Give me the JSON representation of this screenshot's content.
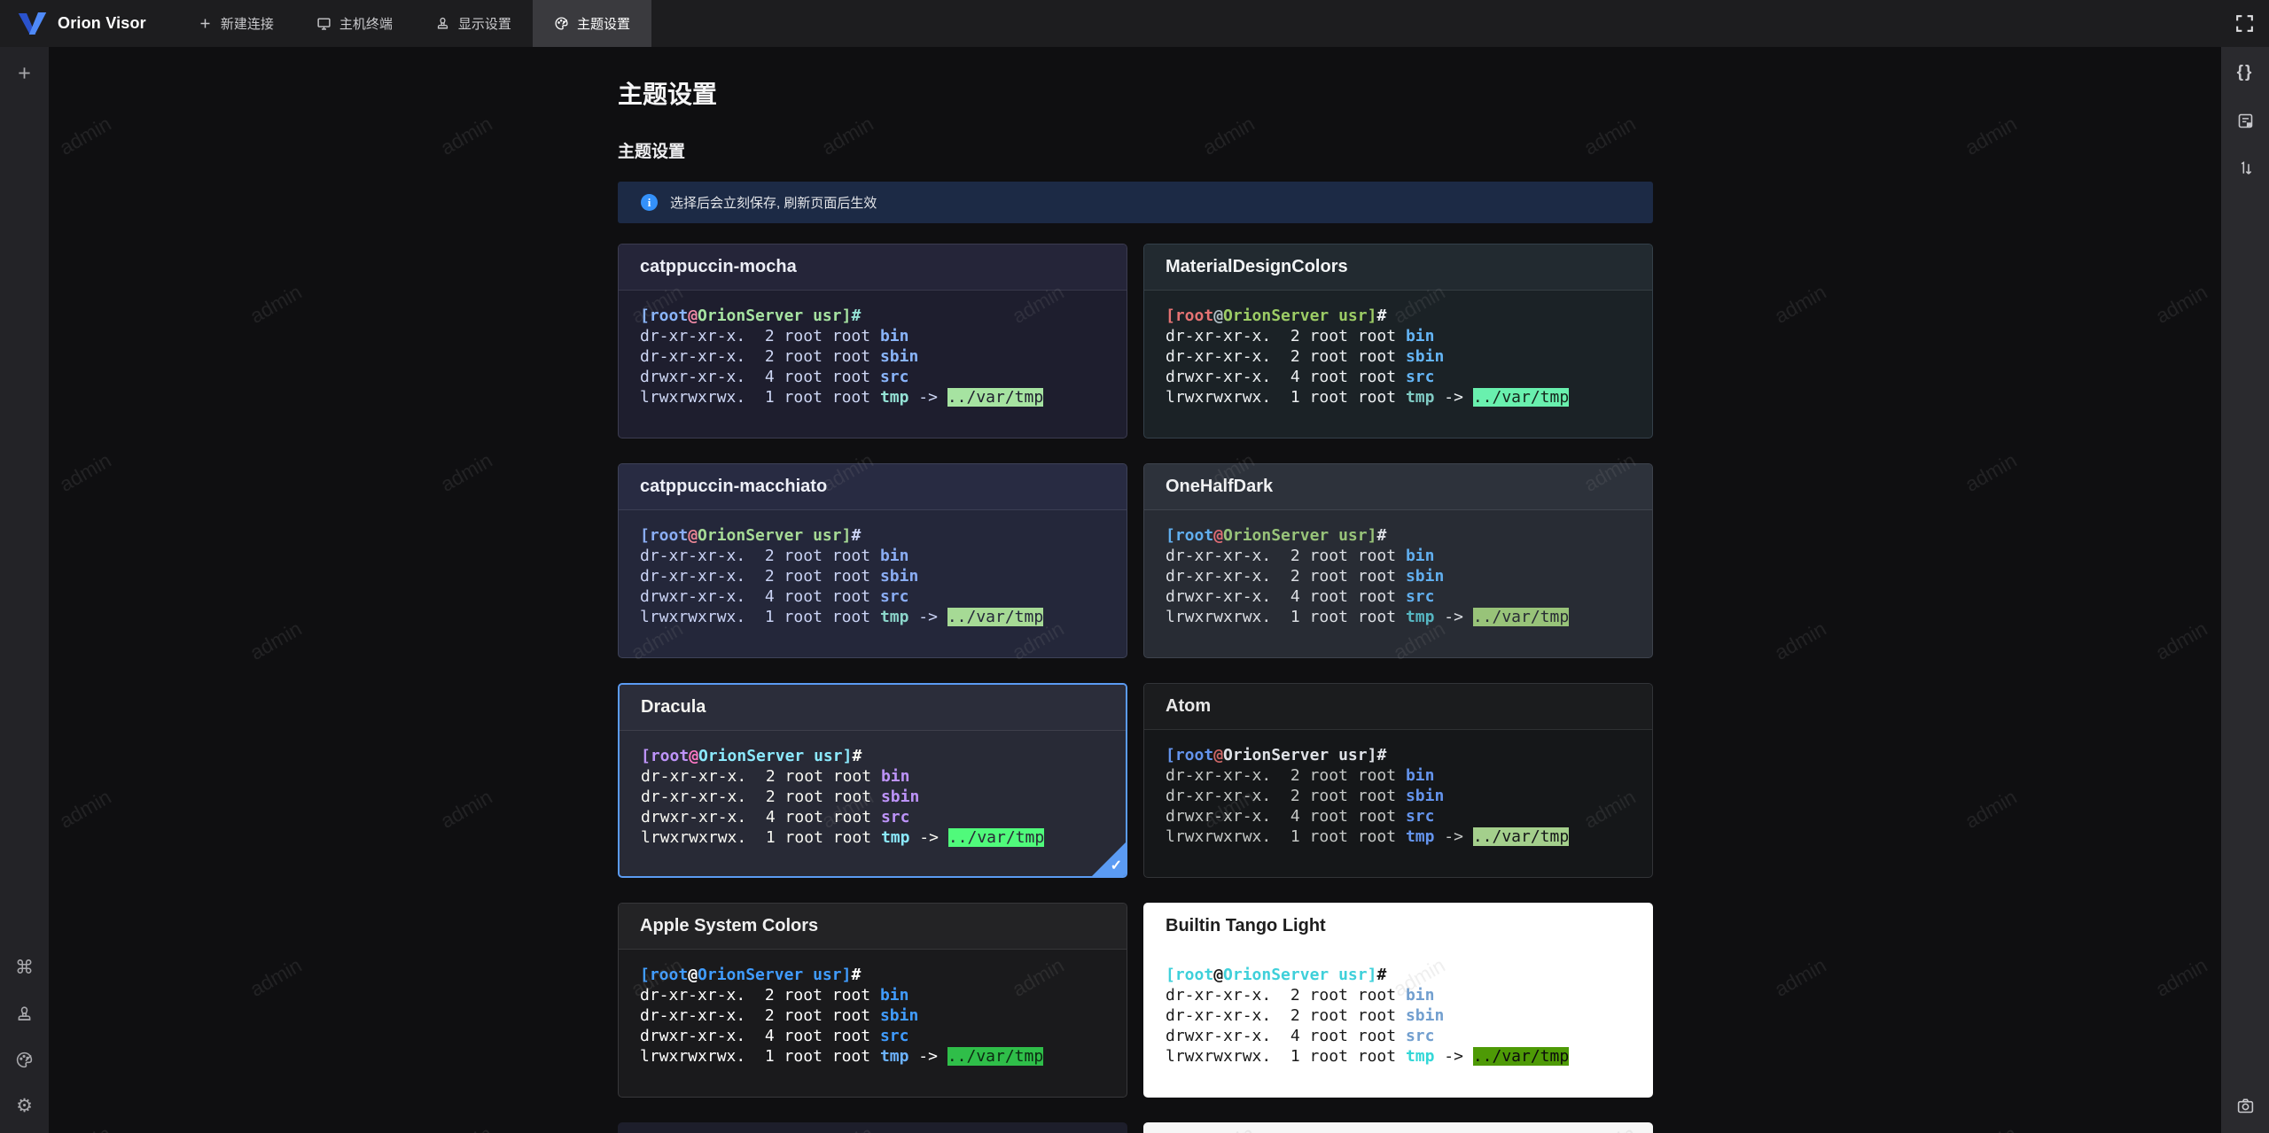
{
  "topbar": {
    "brand": "Orion Visor",
    "tabs": [
      {
        "label": "新建连接",
        "icon": "plus-icon",
        "active": false
      },
      {
        "label": "主机终端",
        "icon": "monitor-icon",
        "active": false
      },
      {
        "label": "显示设置",
        "icon": "stamp-icon",
        "active": false
      },
      {
        "label": "主题设置",
        "icon": "palette-icon",
        "active": true
      }
    ]
  },
  "left_sidebar": {
    "top_icons": [
      "plus-icon"
    ],
    "bottom_icons": [
      "command-icon",
      "stamp-icon",
      "palette-icon",
      "gear-icon"
    ]
  },
  "right_sidebar": {
    "top_icons": [
      "braces-icon",
      "notes-icon",
      "sort-icon"
    ],
    "bottom_icons": [
      "camera-icon"
    ]
  },
  "page": {
    "title": "主题设置",
    "section_title": "主题设置",
    "alert_text": "选择后会立刻保存, 刷新页面后生效"
  },
  "watermark": "admin",
  "selected_accent": "#5b9bf3",
  "terminal_preview": {
    "prompt": {
      "user": "[root",
      "at": "@",
      "host": "OrionServer",
      "path": " usr]",
      "hash": "#"
    },
    "rows": [
      {
        "pre": "dr-xr-xr-x.  2 root root ",
        "name": "bin",
        "type": "dir"
      },
      {
        "pre": "dr-xr-xr-x.  2 root root ",
        "name": "sbin",
        "type": "dir"
      },
      {
        "pre": "drwxr-xr-x.  4 root root ",
        "name": "src",
        "type": "dir"
      },
      {
        "pre": "lrwxrwxrwx.  1 root root ",
        "name": "tmp",
        "type": "symlink",
        "arrow": " -> ",
        "target": "../var/tmp"
      }
    ]
  },
  "themes": [
    {
      "name": "catppuccin-mocha",
      "selected": false,
      "colors": {
        "headerBg": "#252539",
        "bodyBg": "#1e1e2e",
        "fg": "#cdd6f4",
        "headerFg": "#eceef6",
        "promptUser": "#89b4fa",
        "promptAt": "#f38ba8",
        "promptHost": "#a6e3a1",
        "promptPath": "#a6e3a1",
        "promptHash": "#94e2d5",
        "dir": "#89b4fa",
        "tmp": "#94e2d5",
        "linkBg": "#a6e3a1",
        "linkFg": "#1e1e2e",
        "border": "#3c3c50"
      }
    },
    {
      "name": "MaterialDesignColors",
      "selected": false,
      "colors": {
        "headerBg": "#222a30",
        "bodyBg": "#1b2226",
        "fg": "#eceff1",
        "headerFg": "#f2f4f5",
        "promptUser": "#e57373",
        "promptAt": "#b0bec5",
        "promptHost": "#9ccc65",
        "promptPath": "#9ccc65",
        "promptHash": "#eceff1",
        "dir": "#64b5f6",
        "tmp": "#80cbc4",
        "linkBg": "#69f0ae",
        "linkFg": "#15271c",
        "border": "#34404a"
      }
    },
    {
      "name": "catppuccin-macchiato",
      "selected": false,
      "colors": {
        "headerBg": "#282b42",
        "bodyBg": "#24273a",
        "fg": "#cad3f5",
        "headerFg": "#edeff7",
        "promptUser": "#8aadf4",
        "promptAt": "#ed8796",
        "promptHost": "#a6da95",
        "promptPath": "#a6da95",
        "promptHash": "#cad3f5",
        "dir": "#8aadf4",
        "tmp": "#8bd5ca",
        "linkBg": "#a6da95",
        "linkFg": "#24273a",
        "border": "#3e4258"
      }
    },
    {
      "name": "OneHalfDark",
      "selected": false,
      "colors": {
        "headerBg": "#2d323b",
        "bodyBg": "#282c34",
        "fg": "#dcdfe4",
        "headerFg": "#f0f1f3",
        "promptUser": "#61afef",
        "promptAt": "#e06c75",
        "promptHost": "#98c379",
        "promptPath": "#98c379",
        "promptHash": "#dcdfe4",
        "dir": "#61afef",
        "tmp": "#56b6c2",
        "linkBg": "#98c379",
        "linkFg": "#282c34",
        "border": "#3e434d"
      }
    },
    {
      "name": "Dracula",
      "selected": true,
      "colors": {
        "headerBg": "#2b2d3a",
        "bodyBg": "#282a36",
        "fg": "#f8f8f2",
        "headerFg": "#f4f4f0",
        "promptUser": "#bd93f9",
        "promptAt": "#ff79c6",
        "promptHost": "#8be9fd",
        "promptPath": "#8be9fd",
        "promptHash": "#f8f8f2",
        "dir": "#bd93f9",
        "tmp": "#8be9fd",
        "linkBg": "#50fa7b",
        "linkFg": "#282a36",
        "border": "#5b9bf3"
      }
    },
    {
      "name": "Atom",
      "selected": false,
      "colors": {
        "headerBg": "#1b1c1e",
        "bodyBg": "#151719",
        "fg": "#c5c8c6",
        "headerFg": "#e8e8e8",
        "promptUser": "#6494ed",
        "promptAt": "#cc6666",
        "promptHost": "#dfe2e7",
        "promptPath": "#dfe2e7",
        "promptHash": "#dfe2e7",
        "dir": "#6494ed",
        "tmp": "#6494ed",
        "linkBg": "#a4cf8c",
        "linkFg": "#151719",
        "border": "#323438"
      }
    },
    {
      "name": "Apple System Colors",
      "selected": false,
      "colors": {
        "headerBg": "#232325",
        "bodyBg": "#1a1a1c",
        "fg": "#ffffff",
        "headerFg": "#f0f0f0",
        "promptUser": "#409cff",
        "promptAt": "#ffffff",
        "promptHost": "#409cff",
        "promptPath": "#409cff",
        "promptHash": "#ffffff",
        "dir": "#409cff",
        "tmp": "#6cb2ff",
        "linkBg": "#2fbe49",
        "linkFg": "#0c2a12",
        "border": "#37373a"
      }
    },
    {
      "name": "Builtin Tango Light",
      "selected": false,
      "colors": {
        "headerBg": "#ffffff",
        "bodyBg": "#ffffff",
        "fg": "#1a1a1a",
        "headerFg": "#1d1d1d",
        "divider": "rgba(0,0,0,0)",
        "promptUser": "#3fd0da",
        "promptAt": "#1a1a1a",
        "promptHost": "#3fd0da",
        "promptPath": "#3fd0da",
        "promptHash": "#1a1a1a",
        "dir": "#729fcf",
        "tmp": "#34d7d7",
        "linkBg": "#4e9a06",
        "linkFg": "#0c0c0c",
        "border": "#ffffff"
      }
    },
    {
      "name": "",
      "selected": false,
      "partial": true,
      "colors": {
        "headerBg": "#1d1e2b",
        "bodyBg": "#1d1e2b"
      }
    },
    {
      "name": "",
      "selected": false,
      "partial": true,
      "colors": {
        "headerBg": "#f6f6f6",
        "bodyBg": "#f6f6f6"
      }
    }
  ]
}
